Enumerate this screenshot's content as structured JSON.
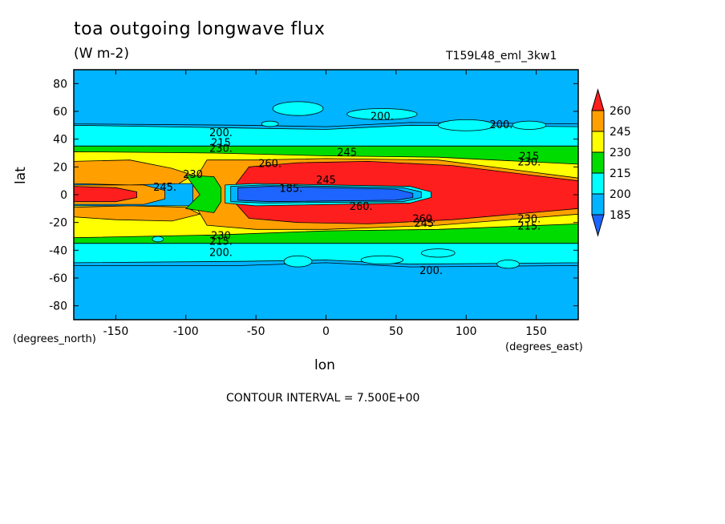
{
  "chart_data": {
    "type": "heatmap",
    "title": "toa outgoing longwave flux",
    "units": "(W m-2)",
    "run_id": "T159L48_eml_3kw1",
    "xlabel": "lon",
    "ylabel": "lat",
    "x_units_left": "(degrees_north)",
    "x_units_right": "(degrees_east)",
    "xlim": [
      -180,
      180
    ],
    "ylim": [
      -90,
      90
    ],
    "x_ticks": [
      -150,
      -100,
      -50,
      0,
      50,
      100,
      150
    ],
    "y_ticks": [
      -80,
      -60,
      -40,
      -20,
      0,
      20,
      40,
      60,
      80
    ],
    "contour_interval": "CONTOUR INTERVAL = 7.500E+00",
    "colorbar": {
      "levels": [
        185,
        200,
        215,
        230,
        245,
        260
      ],
      "colors": [
        "#1e64ff",
        "#00b4ff",
        "#00ffff",
        "#00dc00",
        "#ffff00",
        "#ffa000",
        "#ff1e1e"
      ]
    },
    "bands_north_to_south": [
      {
        "lat_range": [
          50,
          90
        ],
        "value_class": "<200"
      },
      {
        "lat_range": [
          35,
          50
        ],
        "value_class": "200-215"
      },
      {
        "lat_range": [
          25,
          35
        ],
        "value_class": "215-245"
      },
      {
        "lat_range": [
          8,
          25
        ],
        "value_class": ">260 (east), 230-245 (west)"
      },
      {
        "lat_range": [
          -8,
          8
        ],
        "value_class": "<185 core near lon -60..70"
      },
      {
        "lat_range": [
          -25,
          -8
        ],
        "value_class": ">260 (east), 230-245 (west)"
      },
      {
        "lat_range": [
          -35,
          -25
        ],
        "value_class": "215-245"
      },
      {
        "lat_range": [
          -50,
          -35
        ],
        "value_class": "200-215"
      },
      {
        "lat_range": [
          -90,
          -50
        ],
        "value_class": "<200"
      }
    ],
    "contour_labels": [
      {
        "text": "200.",
        "lon": 40,
        "lat": 54
      },
      {
        "text": "200.",
        "lon": 125,
        "lat": 48
      },
      {
        "text": "200.",
        "lon": -75,
        "lat": 42
      },
      {
        "text": "215",
        "lon": -75,
        "lat": 35
      },
      {
        "text": "230.",
        "lon": -75,
        "lat": 31
      },
      {
        "text": "215",
        "lon": 145,
        "lat": 25
      },
      {
        "text": "230.",
        "lon": 145,
        "lat": 21
      },
      {
        "text": "245",
        "lon": 15,
        "lat": 28
      },
      {
        "text": "260.",
        "lon": -40,
        "lat": 20
      },
      {
        "text": "230",
        "lon": -95,
        "lat": 12
      },
      {
        "text": "245.",
        "lon": -115,
        "lat": 3
      },
      {
        "text": "185.",
        "lon": -25,
        "lat": 2
      },
      {
        "text": "245",
        "lon": 0,
        "lat": 8
      },
      {
        "text": "260.",
        "lon": 25,
        "lat": -11
      },
      {
        "text": "260.",
        "lon": 70,
        "lat": -20
      },
      {
        "text": "245",
        "lon": 70,
        "lat": -23
      },
      {
        "text": "230.",
        "lon": 145,
        "lat": -20
      },
      {
        "text": "215.",
        "lon": 145,
        "lat": -25
      },
      {
        "text": "230",
        "lon": -75,
        "lat": -32
      },
      {
        "text": "215.",
        "lon": -75,
        "lat": -36
      },
      {
        "text": "200.",
        "lon": -75,
        "lat": -44
      },
      {
        "text": "200.",
        "lon": 75,
        "lat": -57
      }
    ]
  }
}
